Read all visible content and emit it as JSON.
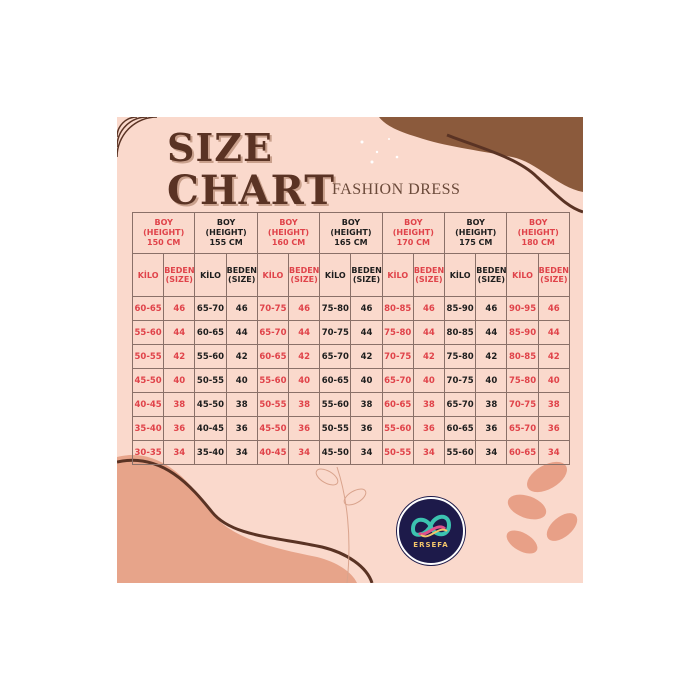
{
  "title_line1": "SIZE",
  "title_line2": "CHART",
  "subtitle": "FASHION DRESS",
  "logo_text": "ERSEFA",
  "colors": {
    "background": "#fad9cc",
    "accent_red": "#e0434a",
    "brown": "#8b5a3c",
    "title": "#5a3324"
  },
  "groups": [
    {
      "boy": "BOY",
      "height": "(HEIGHT)",
      "cm": "150 CM",
      "kilo": "KİLO",
      "beden": "BEDEN",
      "size": "(SIZE)",
      "red": true,
      "rows": [
        [
          "60-65",
          "46"
        ],
        [
          "55-60",
          "44"
        ],
        [
          "50-55",
          "42"
        ],
        [
          "45-50",
          "40"
        ],
        [
          "40-45",
          "38"
        ],
        [
          "35-40",
          "36"
        ],
        [
          "30-35",
          "34"
        ]
      ]
    },
    {
      "boy": "BOY",
      "height": "(HEIGHT)",
      "cm": "155 CM",
      "kilo": "KİLO",
      "beden": "BEDEN",
      "size": "(SIZE)",
      "red": false,
      "rows": [
        [
          "65-70",
          "46"
        ],
        [
          "60-65",
          "44"
        ],
        [
          "55-60",
          "42"
        ],
        [
          "50-55",
          "40"
        ],
        [
          "45-50",
          "38"
        ],
        [
          "40-45",
          "36"
        ],
        [
          "35-40",
          "34"
        ]
      ]
    },
    {
      "boy": "BOY",
      "height": "(HEIGHT)",
      "cm": "160 CM",
      "kilo": "KİLO",
      "beden": "BEDEN",
      "size": "(SIZE)",
      "red": true,
      "rows": [
        [
          "70-75",
          "46"
        ],
        [
          "65-70",
          "44"
        ],
        [
          "60-65",
          "42"
        ],
        [
          "55-60",
          "40"
        ],
        [
          "50-55",
          "38"
        ],
        [
          "45-50",
          "36"
        ],
        [
          "40-45",
          "34"
        ]
      ]
    },
    {
      "boy": "BOY",
      "height": "(HEIGHT)",
      "cm": "165 CM",
      "kilo": "KİLO",
      "beden": "BEDEN",
      "size": "(SIZE)",
      "red": false,
      "rows": [
        [
          "75-80",
          "46"
        ],
        [
          "70-75",
          "44"
        ],
        [
          "65-70",
          "42"
        ],
        [
          "60-65",
          "40"
        ],
        [
          "55-60",
          "38"
        ],
        [
          "50-55",
          "36"
        ],
        [
          "45-50",
          "34"
        ]
      ]
    },
    {
      "boy": "BOY",
      "height": "(HEIGHT)",
      "cm": "170 CM",
      "kilo": "KİLO",
      "beden": "BEDEN",
      "size": "(SIZE)",
      "red": true,
      "rows": [
        [
          "80-85",
          "46"
        ],
        [
          "75-80",
          "44"
        ],
        [
          "70-75",
          "42"
        ],
        [
          "65-70",
          "40"
        ],
        [
          "60-65",
          "38"
        ],
        [
          "55-60",
          "36"
        ],
        [
          "50-55",
          "34"
        ]
      ]
    },
    {
      "boy": "BOY",
      "height": "(HEIGHT)",
      "cm": "175 CM",
      "kilo": "KİLO",
      "beden": "BEDEN",
      "size": "(SIZE)",
      "red": false,
      "rows": [
        [
          "85-90",
          "46"
        ],
        [
          "80-85",
          "44"
        ],
        [
          "75-80",
          "42"
        ],
        [
          "70-75",
          "40"
        ],
        [
          "65-70",
          "38"
        ],
        [
          "60-65",
          "36"
        ],
        [
          "55-60",
          "34"
        ]
      ]
    },
    {
      "boy": "BOY",
      "height": "(HEIGHT)",
      "cm": "180 CM",
      "kilo": "KİLO",
      "beden": "BEDEN",
      "size": "(SIZE)",
      "red": true,
      "rows": [
        [
          "90-95",
          "46"
        ],
        [
          "85-90",
          "44"
        ],
        [
          "80-85",
          "42"
        ],
        [
          "75-80",
          "40"
        ],
        [
          "70-75",
          "38"
        ],
        [
          "65-70",
          "36"
        ],
        [
          "60-65",
          "34"
        ]
      ]
    }
  ]
}
